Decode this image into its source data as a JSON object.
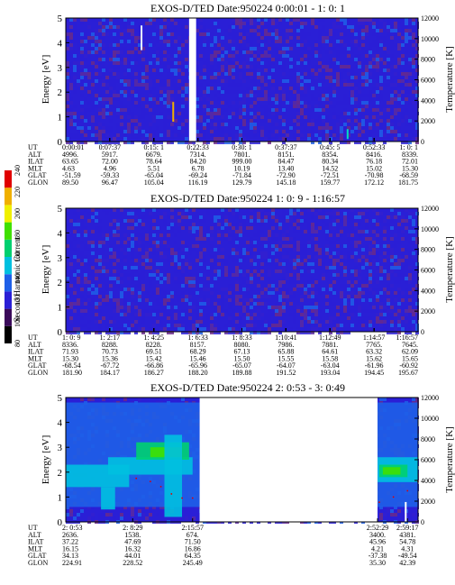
{
  "figure": {
    "colorbar": {
      "label": "Second Harmonic Current",
      "ticks": [
        "80",
        "100",
        "120",
        "140",
        "160",
        "180",
        "200",
        "220",
        "240"
      ],
      "colors": [
        "#000000",
        "#3a0a5a",
        "#2a1fd6",
        "#1e5fe8",
        "#00c0e0",
        "#00d070",
        "#40e000",
        "#f0f000",
        "#f0b000",
        "#e00000"
      ]
    },
    "parameter_labels": [
      "UT",
      "ALT",
      "ILAT",
      "MLT",
      "GLAT",
      "GLON"
    ]
  },
  "chart_data": [
    {
      "type": "heatmap",
      "title": "EXOS-D/TED   Date:950224  0:00:01 - 1: 0: 1",
      "ylabel": "Energy [eV]",
      "y2label": "Temperature [K]",
      "ylim": [
        0,
        5
      ],
      "y2lim": [
        0,
        12000
      ],
      "yticks": [
        "0",
        "1",
        "2",
        "3",
        "4",
        "5"
      ],
      "y2ticks": [
        "0",
        "2000",
        "4000",
        "6000",
        "8000",
        "10000",
        "12000"
      ],
      "data_gaps": [
        [
          0.35,
          0.37
        ]
      ],
      "spikes": [
        {
          "x": 0.215,
          "y0": 3.7,
          "y1": 4.7,
          "color": "#e8f0ff"
        },
        {
          "x": 0.8,
          "y0": 0.1,
          "y1": 0.5,
          "color": "#00e0c0"
        },
        {
          "x": 0.305,
          "y0": 0.8,
          "y1": 1.6,
          "color": "#f0b000"
        }
      ],
      "blobs": [],
      "temperature_trace": [],
      "columns": [
        {
          "UT": "0:00:01",
          "ALT": "4996.",
          "ILAT": "63.65",
          "MLT": "4.63",
          "GLAT": "-51.59",
          "GLON": "89.50"
        },
        {
          "UT": "0:07:37",
          "ALT": "5917.",
          "ILAT": "72.00",
          "MLT": "4.96",
          "GLAT": "-59.33",
          "GLON": "96.47"
        },
        {
          "UT": "0:15: 1",
          "ALT": "6679.",
          "ILAT": "78.64",
          "MLT": "5.51",
          "GLAT": "-65.04",
          "GLON": "105.04"
        },
        {
          "UT": "0:22:33",
          "ALT": "7314.",
          "ILAT": "84.20",
          "MLT": "6.78",
          "GLAT": "-69.24",
          "GLON": "116.19"
        },
        {
          "UT": "0:30: 1",
          "ALT": "7801.",
          "ILAT": "999.00",
          "MLT": "10.19",
          "GLAT": "-71.84",
          "GLON": "129.79"
        },
        {
          "UT": "0:37:37",
          "ALT": "8151.",
          "ILAT": "84.47",
          "MLT": "13.40",
          "GLAT": "-72.90",
          "GLON": "145.18"
        },
        {
          "UT": "0:45: 5",
          "ALT": "8354.",
          "ILAT": "80.34",
          "MLT": "14.52",
          "GLAT": "-72.51",
          "GLON": "159.77"
        },
        {
          "UT": "0:52:33",
          "ALT": "8416.",
          "ILAT": "76.18",
          "MLT": "15.02",
          "GLAT": "-70.98",
          "GLON": "172.12"
        },
        {
          "UT": "1: 0: 1",
          "ALT": "8339.",
          "ILAT": "72.01",
          "MLT": "15.30",
          "GLAT": "-68.59",
          "GLON": "181.75"
        }
      ]
    },
    {
      "type": "heatmap",
      "title": "EXOS-D/TED   Date:950224  1: 0: 9 - 1:16:57",
      "ylabel": "Energy [eV]",
      "y2label": "Temperature [K]",
      "ylim": [
        0,
        5
      ],
      "y2lim": [
        0,
        12000
      ],
      "yticks": [
        "0",
        "1",
        "2",
        "3",
        "4",
        "5"
      ],
      "y2ticks": [
        "0",
        "2000",
        "4000",
        "6000",
        "8000",
        "10000",
        "12000"
      ],
      "data_gaps": [],
      "spikes": [],
      "blobs": [],
      "temperature_trace": [],
      "columns": [
        {
          "UT": "1: 0: 9",
          "ALT": "8336.",
          "ILAT": "71.93",
          "MLT": "15.30",
          "GLAT": "-68.54",
          "GLON": "181.90"
        },
        {
          "UT": "1: 2:17",
          "ALT": "8288.",
          "ILAT": "70.73",
          "MLT": "15.36",
          "GLAT": "-67.72",
          "GLON": "184.17"
        },
        {
          "UT": "1: 4:25",
          "ALT": "8228.",
          "ILAT": "69.51",
          "MLT": "15.42",
          "GLAT": "-66.86",
          "GLON": "186.27"
        },
        {
          "UT": "1: 6:33",
          "ALT": "8157.",
          "ILAT": "68.29",
          "MLT": "15.46",
          "GLAT": "-65.96",
          "GLON": "188.20"
        },
        {
          "UT": "1: 8:33",
          "ALT": "8080.",
          "ILAT": "67.13",
          "MLT": "15.50",
          "GLAT": "-65.07",
          "GLON": "189.88"
        },
        {
          "UT": "1:10:41",
          "ALT": "7986.",
          "ILAT": "65.88",
          "MLT": "15.55",
          "GLAT": "-64.07",
          "GLON": "191.52"
        },
        {
          "UT": "1:12:49",
          "ALT": "7881.",
          "ILAT": "64.61",
          "MLT": "15.58",
          "GLAT": "-63.04",
          "GLON": "193.04"
        },
        {
          "UT": "1:14:57",
          "ALT": "7765.",
          "ILAT": "63.32",
          "MLT": "15.62",
          "GLAT": "-61.96",
          "GLON": "194.45"
        },
        {
          "UT": "1:16:57",
          "ALT": "7645.",
          "ILAT": "62.09",
          "MLT": "15.65",
          "GLAT": "-60.92",
          "GLON": "195.67"
        }
      ]
    },
    {
      "type": "heatmap",
      "title": "EXOS-D/TED   Date:950224  2: 0:53 - 3: 0:49",
      "ylabel": "Energy [eV]",
      "y2label": "Temperature [K]",
      "ylim": [
        0,
        5
      ],
      "y2lim": [
        0,
        12000
      ],
      "yticks": [
        "0",
        "1",
        "2",
        "3",
        "4",
        "5"
      ],
      "y2ticks": [
        "0",
        "2000",
        "4000",
        "6000",
        "8000",
        "10000",
        "12000"
      ],
      "data_gaps": [
        [
          0.38,
          0.885
        ]
      ],
      "spikes": [
        {
          "x": 0.965,
          "y0": 0.0,
          "y1": 0.8,
          "color": "#ffffff"
        }
      ],
      "blobs": [
        {
          "x0": 0.0,
          "x1": 0.38,
          "y0": 0.6,
          "y1": 4.8,
          "color": "#1e5fe8"
        },
        {
          "x0": 0.0,
          "x1": 0.18,
          "y0": 1.4,
          "y1": 2.3,
          "color": "#00c0e0"
        },
        {
          "x0": 0.12,
          "x1": 0.36,
          "y0": 1.9,
          "y1": 2.6,
          "color": "#00c0e0"
        },
        {
          "x0": 0.2,
          "x1": 0.35,
          "y0": 2.5,
          "y1": 3.2,
          "color": "#00d070"
        },
        {
          "x0": 0.24,
          "x1": 0.33,
          "y0": 2.6,
          "y1": 3.0,
          "color": "#40e000"
        },
        {
          "x0": 0.28,
          "x1": 0.33,
          "y0": 0.2,
          "y1": 3.5,
          "color": "#00c0e0"
        },
        {
          "x0": 0.1,
          "x1": 0.14,
          "y0": 0.5,
          "y1": 1.4,
          "color": "#00c0e0"
        },
        {
          "x0": 0.885,
          "x1": 1.0,
          "y0": 0.6,
          "y1": 4.8,
          "color": "#1e5fe8"
        },
        {
          "x0": 0.885,
          "x1": 1.0,
          "y0": 1.6,
          "y1": 2.6,
          "color": "#00c0e0"
        },
        {
          "x0": 0.89,
          "x1": 0.97,
          "y0": 1.8,
          "y1": 2.3,
          "color": "#00d070"
        },
        {
          "x0": 0.9,
          "x1": 0.95,
          "y0": 1.9,
          "y1": 2.2,
          "color": "#40e000"
        }
      ],
      "temperature_trace": [
        {
          "x": 0.2,
          "y": 4200
        },
        {
          "x": 0.24,
          "y": 3900
        },
        {
          "x": 0.27,
          "y": 3400
        },
        {
          "x": 0.3,
          "y": 2700
        },
        {
          "x": 0.33,
          "y": 2300
        },
        {
          "x": 0.36,
          "y": 2300
        },
        {
          "x": 0.89,
          "y": 1900
        },
        {
          "x": 0.93,
          "y": 2400
        },
        {
          "x": 0.97,
          "y": 3000
        },
        {
          "x": 1.0,
          "y": 3900
        }
      ],
      "columns": [
        {
          "UT": "2: 0:53",
          "ALT": "2636.",
          "ILAT": "37.22",
          "MLT": "16.15",
          "GLAT": "34.13",
          "GLON": "224.91"
        },
        {
          "UT": "2: 8:29",
          "ALT": "1538.",
          "ILAT": "47.69",
          "MLT": "16.32",
          "GLAT": "44.01",
          "GLON": "228.52"
        },
        {
          "UT": "2:15:57",
          "ALT": "674.",
          "ILAT": "71.50",
          "MLT": "16.86",
          "GLAT": "64.35",
          "GLON": "245.49"
        },
        {
          "UT": "2:52:29",
          "ALT": "3400.",
          "ILAT": "45.96",
          "MLT": "4.21",
          "GLAT": "-37.38",
          "GLON": "35.30"
        },
        {
          "UT": "2:59:17",
          "ALT": "4381.",
          "ILAT": "54.78",
          "MLT": "4.31",
          "GLAT": "-49.54",
          "GLON": "42.39"
        }
      ]
    }
  ]
}
